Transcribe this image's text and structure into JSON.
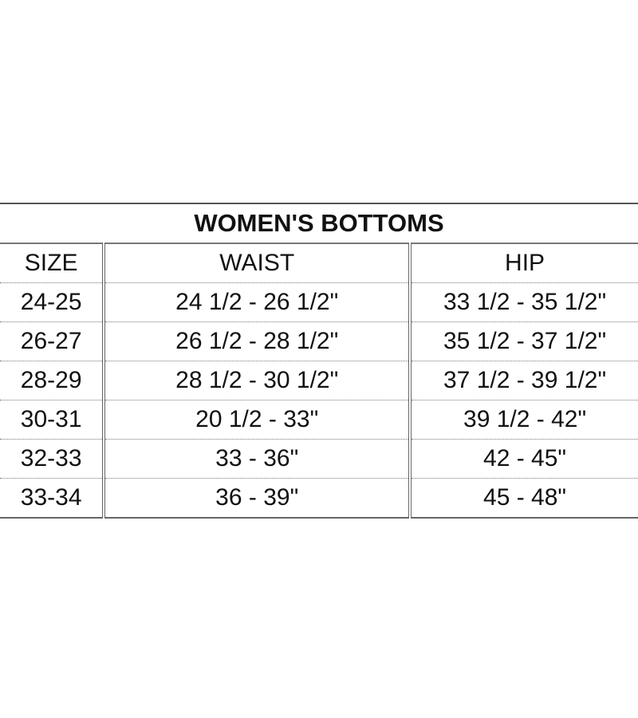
{
  "table": {
    "title": "WOMEN'S BOTTOMS",
    "headers": [
      "SIZE",
      "WAIST",
      "HIP"
    ],
    "rows": [
      [
        "24-25",
        "24 1/2 - 26 1/2\"",
        "33 1/2 - 35 1/2\""
      ],
      [
        "26-27",
        "26 1/2 - 28 1/2\"",
        "35 1/2 - 37 1/2\""
      ],
      [
        "28-29",
        "28 1/2 - 30 1/2\"",
        "37 1/2 - 39 1/2\""
      ],
      [
        "30-31",
        "20 1/2 - 33\"",
        "39 1/2 - 42\""
      ],
      [
        "32-33",
        "33 - 36\"",
        "42 - 45\""
      ],
      [
        "33-34",
        "36 - 39\"",
        "45 - 48\""
      ]
    ]
  }
}
